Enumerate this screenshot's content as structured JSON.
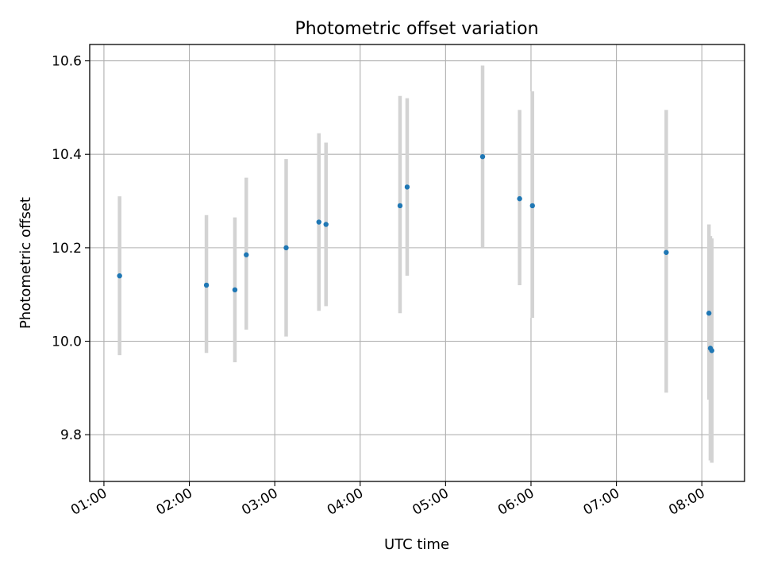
{
  "chart_data": {
    "type": "scatter",
    "title": "Photometric offset variation",
    "xlabel": "UTC time",
    "ylabel": "Photometric offset",
    "x_unit": "time of day (HH:MM, UTC)",
    "xlim": [
      "00:50",
      "08:30"
    ],
    "ylim": [
      9.7,
      10.635
    ],
    "grid": true,
    "x_ticks": [
      "01:00",
      "02:00",
      "03:00",
      "04:00",
      "05:00",
      "06:00",
      "07:00",
      "08:00"
    ],
    "y_ticks": [
      9.8,
      10.0,
      10.2,
      10.4,
      10.6
    ],
    "y_tick_labels": [
      "9.8",
      "10.0",
      "10.2",
      "10.4",
      "10.6"
    ],
    "marker_color": "#1f77b4",
    "errorbar_color": "#d3d3d3",
    "points": [
      {
        "x": "01:11",
        "y": 10.14,
        "yerr_low": 9.97,
        "yerr_high": 10.31
      },
      {
        "x": "02:12",
        "y": 10.12,
        "yerr_low": 9.975,
        "yerr_high": 10.27
      },
      {
        "x": "02:32",
        "y": 10.11,
        "yerr_low": 9.955,
        "yerr_high": 10.265
      },
      {
        "x": "02:40",
        "y": 10.185,
        "yerr_low": 10.025,
        "yerr_high": 10.35
      },
      {
        "x": "03:08",
        "y": 10.2,
        "yerr_low": 10.01,
        "yerr_high": 10.39
      },
      {
        "x": "03:31",
        "y": 10.255,
        "yerr_low": 10.065,
        "yerr_high": 10.445
      },
      {
        "x": "03:36",
        "y": 10.25,
        "yerr_low": 10.075,
        "yerr_high": 10.425
      },
      {
        "x": "04:28",
        "y": 10.29,
        "yerr_low": 10.06,
        "yerr_high": 10.525
      },
      {
        "x": "04:33",
        "y": 10.33,
        "yerr_low": 10.14,
        "yerr_high": 10.52
      },
      {
        "x": "05:26",
        "y": 10.395,
        "yerr_low": 10.2,
        "yerr_high": 10.59
      },
      {
        "x": "05:52",
        "y": 10.305,
        "yerr_low": 10.12,
        "yerr_high": 10.495
      },
      {
        "x": "06:01",
        "y": 10.29,
        "yerr_low": 10.05,
        "yerr_high": 10.535
      },
      {
        "x": "07:35",
        "y": 10.19,
        "yerr_low": 9.89,
        "yerr_high": 10.495
      },
      {
        "x": "08:05",
        "y": 10.06,
        "yerr_low": 9.875,
        "yerr_high": 10.25
      },
      {
        "x": "08:06",
        "y": 9.985,
        "yerr_low": 9.745,
        "yerr_high": 10.225
      },
      {
        "x": "08:07",
        "y": 9.98,
        "yerr_low": 9.74,
        "yerr_high": 10.22
      }
    ]
  }
}
